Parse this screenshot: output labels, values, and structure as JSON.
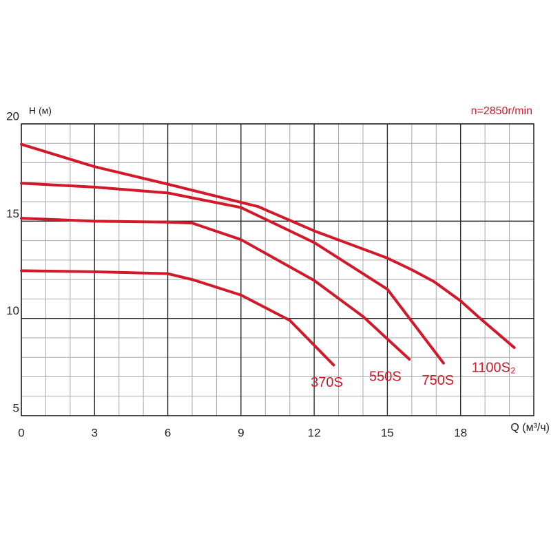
{
  "chart_data": {
    "type": "line",
    "y_label": "H (м)",
    "x_label": "Q (м³/ч)",
    "annotation": "n=2850r/min",
    "xlim": [
      0,
      21
    ],
    "ylim": [
      5,
      20
    ],
    "xticks": [
      0,
      3,
      6,
      9,
      12,
      15,
      18
    ],
    "yticks": [
      5,
      10,
      15,
      20
    ],
    "grid": true,
    "minor_grid_step": 1,
    "series": [
      {
        "name": "370S",
        "color": "#d3182a",
        "x": [
          0,
          3,
          6,
          7,
          9,
          11,
          12.8
        ],
        "values": [
          12.45,
          12.4,
          12.3,
          12.0,
          11.2,
          9.9,
          7.6
        ]
      },
      {
        "name": "550S",
        "color": "#d3182a",
        "x": [
          0,
          3,
          6,
          7,
          9,
          12,
          14,
          15.9
        ],
        "values": [
          15.15,
          15.0,
          14.95,
          14.9,
          14.05,
          11.95,
          10.1,
          7.9
        ]
      },
      {
        "name": "750S",
        "color": "#d3182a",
        "x": [
          0,
          3,
          6,
          9,
          12,
          15,
          17.3
        ],
        "values": [
          16.95,
          16.75,
          16.45,
          15.7,
          13.9,
          11.5,
          7.7
        ]
      },
      {
        "name": "1100S₂",
        "color": "#d3182a",
        "x": [
          0,
          3,
          6,
          9.7,
          12,
          15,
          16,
          16.9,
          18,
          18.8,
          20.2
        ],
        "values": [
          18.95,
          17.8,
          16.9,
          15.75,
          14.5,
          13.1,
          12.5,
          11.9,
          10.9,
          10.0,
          8.5
        ]
      }
    ]
  }
}
